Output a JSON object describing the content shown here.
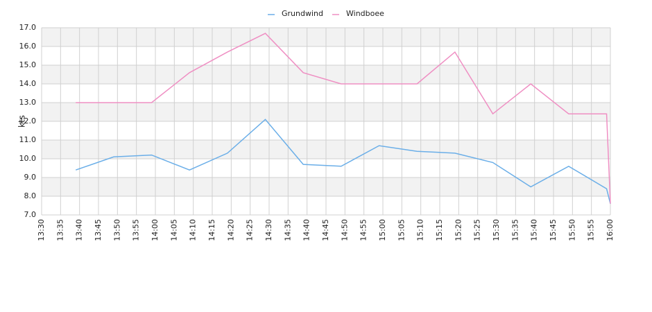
{
  "chart_data": {
    "type": "line",
    "ylabel": "kts",
    "x": [
      "13:39",
      "13:49",
      "13:59",
      "14:09",
      "14:19",
      "14:29",
      "14:39",
      "14:49",
      "14:59",
      "15:09",
      "15:19",
      "15:29",
      "15:39",
      "15:49",
      "15:59",
      "16:00"
    ],
    "series": [
      {
        "name": "Grundwind",
        "color": "#6aaee8",
        "values": [
          9.4,
          10.1,
          10.2,
          9.4,
          10.3,
          12.1,
          9.7,
          9.6,
          10.7,
          10.4,
          10.3,
          9.8,
          8.5,
          9.6,
          8.4,
          7.6
        ]
      },
      {
        "name": "Windboee",
        "color": "#ef8fc3",
        "values": [
          13.0,
          13.0,
          13.0,
          14.6,
          15.7,
          16.7,
          14.6,
          14.0,
          14.0,
          14.0,
          15.7,
          12.4,
          14.0,
          12.4,
          12.4,
          7.6
        ]
      }
    ],
    "xlim": [
      "13:30",
      "16:00"
    ],
    "xticks": [
      "13:30",
      "13:35",
      "13:40",
      "13:45",
      "13:50",
      "13:55",
      "14:00",
      "14:05",
      "14:10",
      "14:15",
      "14:20",
      "14:25",
      "14:30",
      "14:35",
      "14:40",
      "14:45",
      "14:50",
      "14:55",
      "15:00",
      "15:05",
      "15:10",
      "15:15",
      "15:20",
      "15:25",
      "15:30",
      "15:35",
      "15:40",
      "15:45",
      "15:50",
      "15:55",
      "16:00"
    ],
    "ylim": [
      7,
      17
    ],
    "yticks": [
      {
        "value": 7,
        "label": "7.0"
      },
      {
        "value": 8,
        "label": "8.0"
      },
      {
        "value": 9,
        "label": "9.0"
      },
      {
        "value": 10,
        "label": "10.0"
      },
      {
        "value": 11,
        "label": "11.0"
      },
      {
        "value": 12,
        "label": "12.0"
      },
      {
        "value": 13,
        "label": "13.0"
      },
      {
        "value": 14,
        "label": "14.0"
      },
      {
        "value": 15,
        "label": "15.0"
      },
      {
        "value": 16,
        "label": "16.0"
      },
      {
        "value": 17,
        "label": "17.0"
      }
    ],
    "grid": true,
    "legend": "top"
  }
}
